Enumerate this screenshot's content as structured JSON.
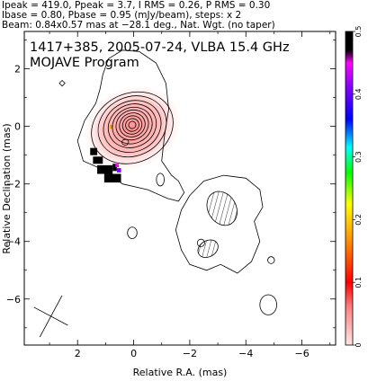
{
  "header": {
    "line1": "Ipeak = 419.0, Ppeak = 3.7, I RMS = 0.26, P RMS = 0.30",
    "line2": "Ibase = 0.80, Pbase = 0.95 (mJy/beam), steps: x 2",
    "line3": "Beam: 0.84x0.57 mas at −28.1 deg., Nat. Wgt. (no taper)"
  },
  "chart_data": {
    "type": "heatmap",
    "title": "1417+385, 2005-07-24, VLBA 15.4 GHz",
    "subtitle": "MOJAVE Program",
    "xlabel": "Relative R.A. (mas)",
    "ylabel": "Relative Declination (mas)",
    "xlim": [
      3.9,
      -7.2
    ],
    "ylim": [
      -7.6,
      3.3
    ],
    "x_ticks": [
      2,
      0,
      -2,
      -4,
      -6
    ],
    "x_tick_labels": [
      "2",
      "0",
      "−2",
      "−4",
      "−6"
    ],
    "y_ticks": [
      2,
      0,
      -2,
      -4,
      -6
    ],
    "y_tick_labels": [
      "2",
      "0",
      "−2",
      "−4",
      "−6"
    ],
    "colorbar": {
      "ticks": [
        0,
        0.1,
        0.2,
        0.3,
        0.4,
        0.5
      ],
      "tick_labels": [
        "0",
        "0.1",
        "0.2",
        "0.3",
        "0.4",
        "0.5"
      ],
      "range": [
        0,
        0.5
      ],
      "colors": [
        "#ffe0e0",
        "#ff0000",
        "#ffa500",
        "#ffff00",
        "#00ff00",
        "#00ffff",
        "#0000ff",
        "#ff00ff",
        "#000000"
      ]
    },
    "core_contours": [
      {
        "x": 0.05,
        "y": -0.05,
        "rx": 3.0,
        "ry": 2.4
      },
      {
        "x": 0.05,
        "y": 0.0,
        "rx": 2.5,
        "ry": 2.05
      },
      {
        "x": 0.05,
        "y": 0.0,
        "rx": 2.1,
        "ry": 1.75
      },
      {
        "x": 0.05,
        "y": 0.02,
        "rx": 1.75,
        "ry": 1.48
      },
      {
        "x": 0.05,
        "y": 0.03,
        "rx": 1.45,
        "ry": 1.24
      },
      {
        "x": 0.05,
        "y": 0.05,
        "rx": 1.18,
        "ry": 1.02
      },
      {
        "x": 0.05,
        "y": 0.05,
        "rx": 0.93,
        "ry": 0.82
      },
      {
        "x": 0.05,
        "y": 0.05,
        "rx": 0.7,
        "ry": 0.63
      },
      {
        "x": 0.05,
        "y": 0.05,
        "rx": 0.48,
        "ry": 0.44
      },
      {
        "x": 0.05,
        "y": 0.05,
        "rx": 0.26,
        "ry": 0.25
      }
    ],
    "core_angle_deg": -25,
    "outer_contour": [
      [
        1.1,
        1.8
      ],
      [
        0.9,
        2.35
      ],
      [
        0.4,
        2.65
      ],
      [
        -0.2,
        2.6
      ],
      [
        -0.8,
        2.2
      ],
      [
        -1.15,
        1.5
      ],
      [
        -1.25,
        0.6
      ],
      [
        -1.1,
        -0.3
      ],
      [
        -1.0,
        -1.2
      ],
      [
        -1.35,
        -1.7
      ],
      [
        -1.6,
        -1.9
      ],
      [
        -1.8,
        -2.3
      ],
      [
        -1.6,
        -2.6
      ],
      [
        -1.2,
        -2.5
      ],
      [
        -0.5,
        -2.2
      ],
      [
        0.4,
        -2.0
      ],
      [
        1.1,
        -1.5
      ],
      [
        1.8,
        -1.2
      ],
      [
        2.0,
        -0.5
      ],
      [
        1.75,
        0.2
      ],
      [
        1.35,
        0.8
      ],
      [
        1.2,
        1.3
      ]
    ],
    "south_contour": [
      [
        -2.0,
        -2.4
      ],
      [
        -2.5,
        -1.9
      ],
      [
        -3.2,
        -1.7
      ],
      [
        -4.0,
        -1.8
      ],
      [
        -4.5,
        -2.2
      ],
      [
        -4.6,
        -2.8
      ],
      [
        -4.3,
        -3.3
      ],
      [
        -4.5,
        -4.0
      ],
      [
        -4.2,
        -4.7
      ],
      [
        -3.7,
        -5.1
      ],
      [
        -3.1,
        -4.8
      ],
      [
        -2.6,
        -5.0
      ],
      [
        -2.0,
        -4.8
      ],
      [
        -1.7,
        -4.3
      ],
      [
        -1.5,
        -3.6
      ],
      [
        -1.7,
        -2.9
      ]
    ],
    "islands": [
      {
        "x": 2.55,
        "y": 1.5,
        "rx": 0.1,
        "ry": 0.1,
        "shape": "diamond"
      },
      {
        "x": 0.3,
        "y": -0.55,
        "rx": 0.12,
        "ry": 0.1
      },
      {
        "x": -0.95,
        "y": -1.85,
        "rx": 0.14,
        "ry": 0.22
      },
      {
        "x": 0.05,
        "y": -3.7,
        "rx": 0.17,
        "ry": 0.2
      },
      {
        "x": -2.4,
        "y": -4.05,
        "rx": 0.13,
        "ry": 0.13
      },
      {
        "x": -4.9,
        "y": -4.65,
        "rx": 0.12,
        "ry": 0.12
      },
      {
        "x": -4.8,
        "y": -6.2,
        "rx": 0.3,
        "ry": 0.35
      }
    ],
    "hatched_regions": [
      {
        "x": -3.15,
        "y": -2.85,
        "rx": 0.5,
        "ry": 0.62
      },
      {
        "x": -2.65,
        "y": -4.25,
        "rx": 0.38,
        "ry": 0.28
      }
    ],
    "pol_pixels": [
      {
        "x": 1.55,
        "y": -0.75,
        "w": 0.25,
        "h": 0.25,
        "color": "#000000"
      },
      {
        "x": 1.45,
        "y": -1.05,
        "w": 0.35,
        "h": 0.25,
        "color": "#000000"
      },
      {
        "x": 1.3,
        "y": -1.35,
        "w": 0.55,
        "h": 0.3,
        "color": "#000000"
      },
      {
        "x": 1.05,
        "y": -1.65,
        "w": 0.6,
        "h": 0.3,
        "color": "#000000"
      },
      {
        "x": 0.75,
        "y": -1.3,
        "w": 0.15,
        "h": 0.25,
        "color": "#000000"
      },
      {
        "x": 0.65,
        "y": -1.3,
        "w": 0.12,
        "h": 0.12,
        "color": "#ff00ff"
      },
      {
        "x": 0.6,
        "y": -1.45,
        "w": 0.15,
        "h": 0.15,
        "color": "#8000ff"
      },
      {
        "x": 0.85,
        "y": 0.05,
        "w": 0.12,
        "h": 0.12,
        "color": "#ff9900"
      }
    ],
    "beam": {
      "x": 2.95,
      "y": -6.6,
      "major": 0.84,
      "minor": 0.57,
      "pa_deg": -28.1
    }
  }
}
